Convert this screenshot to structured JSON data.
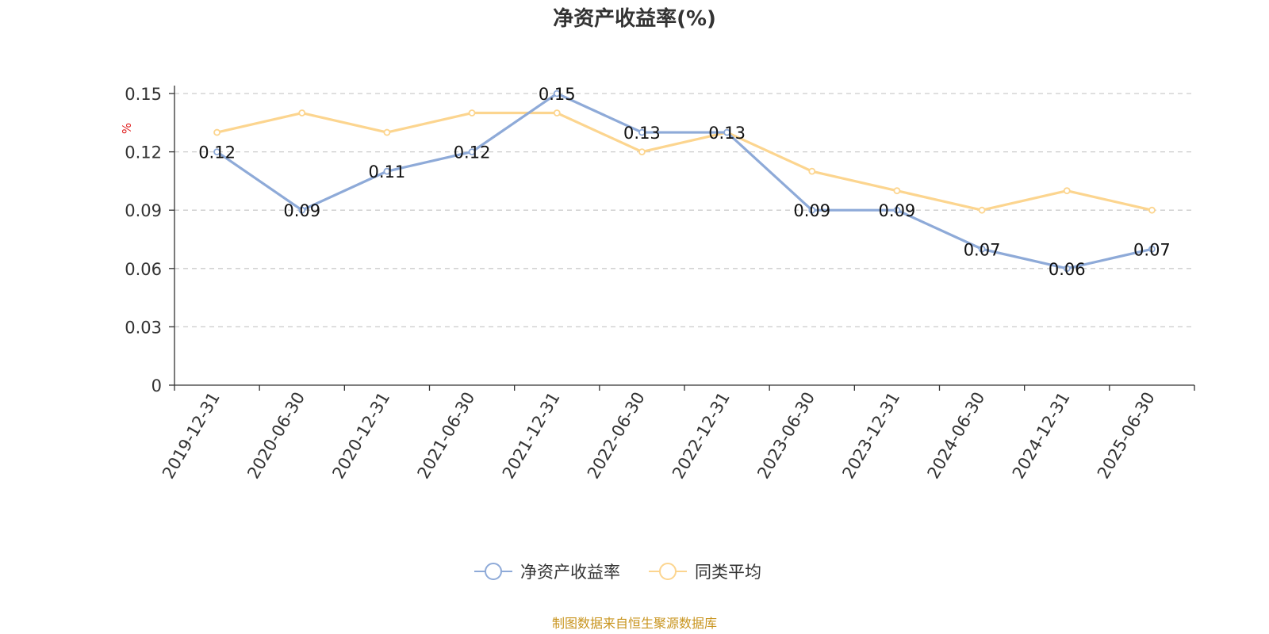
{
  "chart_data": {
    "type": "line",
    "title": "净资产收益率(%)",
    "ylabel": "%",
    "categories": [
      "2019-12-31",
      "2020-06-30",
      "2020-12-31",
      "2021-06-30",
      "2021-12-31",
      "2022-06-30",
      "2022-12-31",
      "2023-06-30",
      "2023-12-31",
      "2024-06-30",
      "2024-12-31",
      "2025-06-30"
    ],
    "ylim": [
      0,
      0.15
    ],
    "yticks": [
      "0",
      "0.03",
      "0.06",
      "0.09",
      "0.12",
      "0.15"
    ],
    "grid": true,
    "legend_position": "bottom-center",
    "series": [
      {
        "name": "净资产收益率",
        "color": "#8eaad8",
        "values": [
          0.12,
          0.09,
          0.11,
          0.12,
          0.15,
          0.13,
          0.13,
          0.09,
          0.09,
          0.07,
          0.06,
          0.07
        ],
        "labels": [
          "0.12",
          "0.09",
          "0.11",
          "0.12",
          "0.15",
          "0.13",
          "0.13",
          "0.09",
          "0.09",
          "0.07",
          "0.06",
          "0.07"
        ]
      },
      {
        "name": "同类平均",
        "color": "#fcd58f",
        "values": [
          0.13,
          0.14,
          0.13,
          0.14,
          0.14,
          0.12,
          0.13,
          0.11,
          0.1,
          0.09,
          0.1,
          0.09
        ]
      }
    ],
    "source": "制图数据来自恒生聚源数据库"
  }
}
